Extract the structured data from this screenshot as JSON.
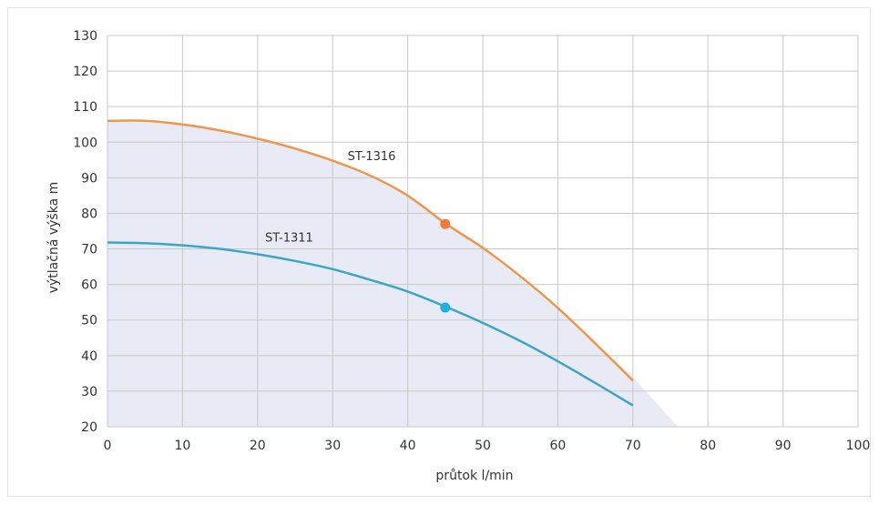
{
  "chart_data": {
    "type": "line",
    "xlabel": "průtok l/min",
    "ylabel": "výtlačná výška m",
    "xlim": [
      0,
      100
    ],
    "ylim": [
      20,
      130
    ],
    "xticks": [
      0,
      10,
      20,
      30,
      40,
      50,
      60,
      70,
      80,
      90,
      100
    ],
    "yticks": [
      20,
      30,
      40,
      50,
      60,
      70,
      80,
      90,
      100,
      110,
      120,
      130
    ],
    "grid": true,
    "area": {
      "color": "#e8eaf6",
      "points": [
        [
          0,
          106
        ],
        [
          10,
          105
        ],
        [
          20,
          101
        ],
        [
          30,
          95
        ],
        [
          40,
          85
        ],
        [
          45,
          77
        ],
        [
          50,
          70
        ],
        [
          60,
          53
        ],
        [
          70,
          34
        ],
        [
          76,
          20
        ],
        [
          0,
          20
        ]
      ]
    },
    "series": [
      {
        "name": "ST-1316",
        "color": "#f0964a",
        "x": [
          0,
          5,
          10,
          15,
          20,
          25,
          30,
          35,
          40,
          45,
          50,
          55,
          60,
          65,
          70
        ],
        "y": [
          106,
          106,
          105,
          103.3,
          101,
          98.2,
          94.8,
          90.6,
          85,
          77.2,
          70.3,
          62.3,
          53.4,
          43.4,
          33
        ],
        "marker": {
          "x": 45,
          "y": 77
        }
      },
      {
        "name": "ST-1311",
        "color": "#3ba6c7",
        "x": [
          0,
          5,
          10,
          15,
          20,
          25,
          30,
          35,
          40,
          45,
          50,
          55,
          60,
          65,
          70
        ],
        "y": [
          71.8,
          71.6,
          71,
          70,
          68.5,
          66.6,
          64.3,
          61.3,
          58,
          53.8,
          49.2,
          44.1,
          38.4,
          32.3,
          26
        ],
        "marker": {
          "x": 45,
          "y": 53.5
        }
      }
    ],
    "marker_colors": [
      "#f07a3a",
      "#1fb0e0"
    ]
  }
}
